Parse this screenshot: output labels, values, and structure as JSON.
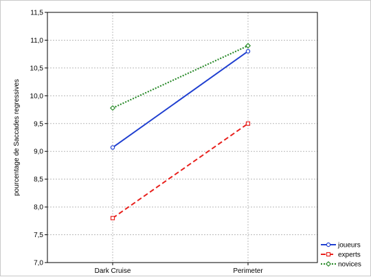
{
  "chart_data": {
    "type": "line",
    "ylabel": "pourcentage de Saccades regressives",
    "xlabel": "",
    "categories": [
      "Dark Cruise",
      "Perimeter"
    ],
    "ylim": [
      7.0,
      11.5
    ],
    "yticks": [
      "7,0",
      "7,5",
      "8,0",
      "8,5",
      "9,0",
      "9,5",
      "10,0",
      "10,5",
      "11,0",
      "11,5"
    ],
    "grid": true,
    "legend_position": "bottom-right",
    "series": [
      {
        "name": "joueurs",
        "values": [
          9.07,
          10.8
        ],
        "color": "#1f3fd0",
        "dash": "solid",
        "marker": "circle"
      },
      {
        "name": "experts",
        "values": [
          7.8,
          9.5
        ],
        "color": "#e8201c",
        "dash": "dashed",
        "marker": "square"
      },
      {
        "name": "novices",
        "values": [
          9.78,
          10.9
        ],
        "color": "#2a8a2a",
        "dash": "dotted",
        "marker": "diamond"
      }
    ]
  }
}
